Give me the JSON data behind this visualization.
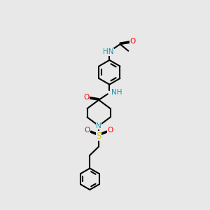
{
  "background_color": "#e8e8e8",
  "atom_colors": {
    "C": "#000000",
    "N": "#2090a0",
    "O": "#ff0000",
    "S": "#cccc00"
  },
  "figsize": [
    3.0,
    3.0
  ],
  "dpi": 100,
  "bond_lw": 1.5,
  "font_size": 7.5
}
